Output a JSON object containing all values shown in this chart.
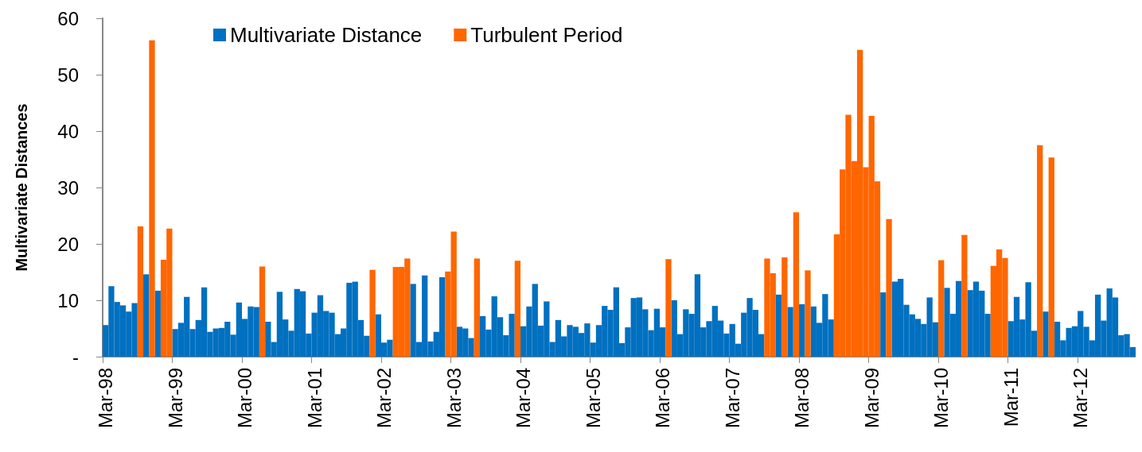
{
  "chart_data": {
    "type": "bar",
    "ylabel": "Multivariate Distances",
    "categories": [
      "Mar-98",
      null,
      null,
      null,
      null,
      null,
      null,
      null,
      null,
      null,
      null,
      null,
      "Mar-99",
      null,
      null,
      null,
      null,
      null,
      null,
      null,
      null,
      null,
      null,
      null,
      "Mar-00",
      null,
      null,
      null,
      null,
      null,
      null,
      null,
      null,
      null,
      null,
      null,
      "Mar-01",
      null,
      null,
      null,
      null,
      null,
      null,
      null,
      null,
      null,
      null,
      null,
      "Mar-02",
      null,
      null,
      null,
      null,
      null,
      null,
      null,
      null,
      null,
      null,
      null,
      "Mar-03",
      null,
      null,
      null,
      null,
      null,
      null,
      null,
      null,
      null,
      null,
      null,
      "Mar-04",
      null,
      null,
      null,
      null,
      null,
      null,
      null,
      null,
      null,
      null,
      null,
      "Mar-05",
      null,
      null,
      null,
      null,
      null,
      null,
      null,
      null,
      null,
      null,
      null,
      "Mar-06",
      null,
      null,
      null,
      null,
      null,
      null,
      null,
      null,
      null,
      null,
      null,
      "Mar-07",
      null,
      null,
      null,
      null,
      null,
      null,
      null,
      null,
      null,
      null,
      null,
      "Mar-08",
      null,
      null,
      null,
      null,
      null,
      null,
      null,
      null,
      null,
      null,
      null,
      "Mar-09",
      null,
      null,
      null,
      null,
      null,
      null,
      null,
      null,
      null,
      null,
      null,
      "Mar-10",
      null,
      null,
      null,
      null,
      null,
      null,
      null,
      null,
      null,
      null,
      null,
      "Mar-11",
      null,
      null,
      null,
      null,
      null,
      null,
      null,
      null,
      null,
      null,
      null,
      "Mar-12",
      null,
      null,
      null,
      null,
      null,
      null,
      null,
      null,
      null
    ],
    "series": [
      {
        "name": "Multivariate Distance",
        "color": "#0070c0",
        "values": [
          5.6,
          12.5,
          9.7,
          9.1,
          8.0,
          9.5,
          null,
          14.6,
          null,
          11.7,
          null,
          null,
          4.9,
          6.0,
          10.6,
          4.9,
          6.5,
          12.3,
          4.4,
          5.0,
          5.1,
          6.2,
          3.9,
          9.6,
          6.7,
          8.9,
          8.8,
          null,
          6.2,
          2.6,
          11.5,
          6.6,
          4.6,
          12.0,
          11.6,
          4.1,
          7.8,
          10.9,
          8.1,
          7.8,
          4.0,
          5.0,
          13.1,
          13.3,
          6.5,
          3.7,
          null,
          7.5,
          2.5,
          3.0,
          null,
          null,
          null,
          12.9,
          2.6,
          14.4,
          2.7,
          4.4,
          14.1,
          null,
          null,
          5.3,
          5.0,
          3.3,
          null,
          7.2,
          4.8,
          10.7,
          7.0,
          3.8,
          7.6,
          null,
          5.4,
          8.9,
          12.9,
          5.5,
          9.8,
          2.6,
          6.5,
          3.6,
          5.6,
          5.3,
          4.2,
          5.9,
          2.5,
          5.6,
          9.0,
          8.3,
          12.3,
          2.4,
          5.2,
          10.4,
          10.5,
          8.4,
          4.7,
          8.5,
          5.2,
          null,
          10.0,
          4.0,
          8.4,
          7.6,
          14.6,
          5.2,
          6.3,
          9.0,
          6.4,
          4.1,
          5.8,
          2.3,
          7.8,
          10.4,
          8.3,
          4.0,
          null,
          null,
          11.0,
          null,
          8.8,
          null,
          9.3,
          null,
          8.9,
          6.0,
          11.1,
          6.6,
          null,
          null,
          null,
          null,
          null,
          null,
          null,
          null,
          11.4,
          null,
          13.3,
          13.8,
          9.2,
          7.5,
          6.7,
          5.8,
          10.5,
          6.1,
          null,
          12.2,
          7.6,
          13.4,
          null,
          11.8,
          13.3,
          11.7,
          7.6,
          null,
          null,
          null,
          6.3,
          10.6,
          6.6,
          13.2,
          4.6,
          null,
          8.0,
          null,
          6.2,
          2.9,
          5.1,
          5.4,
          8.1,
          5.3,
          2.9,
          11.0,
          6.4,
          12.1,
          10.5,
          3.8,
          4.0,
          1.7
        ]
      },
      {
        "name": "Turbulent Period",
        "color": "#ff6600",
        "values": [
          null,
          null,
          null,
          null,
          null,
          null,
          23.1,
          null,
          56.1,
          null,
          17.2,
          22.7,
          null,
          null,
          null,
          null,
          null,
          null,
          null,
          null,
          null,
          null,
          null,
          null,
          null,
          null,
          null,
          16.0,
          null,
          null,
          null,
          null,
          null,
          null,
          null,
          null,
          null,
          null,
          null,
          null,
          null,
          null,
          null,
          null,
          null,
          null,
          15.4,
          null,
          null,
          null,
          15.9,
          15.9,
          17.4,
          null,
          null,
          null,
          null,
          null,
          null,
          15.1,
          22.2,
          null,
          null,
          null,
          17.4,
          null,
          null,
          null,
          null,
          null,
          null,
          17.0,
          null,
          null,
          null,
          null,
          null,
          null,
          null,
          null,
          null,
          null,
          null,
          null,
          null,
          null,
          null,
          null,
          null,
          null,
          null,
          null,
          null,
          null,
          null,
          null,
          null,
          17.3,
          null,
          null,
          null,
          null,
          null,
          null,
          null,
          null,
          null,
          null,
          null,
          null,
          null,
          null,
          null,
          null,
          17.4,
          14.8,
          null,
          17.6,
          null,
          25.6,
          null,
          15.3,
          null,
          null,
          null,
          null,
          21.7,
          33.2,
          42.9,
          34.7,
          54.4,
          33.6,
          42.7,
          31.1,
          null,
          24.4,
          null,
          null,
          null,
          null,
          null,
          null,
          null,
          null,
          17.1,
          null,
          null,
          null,
          21.6,
          null,
          null,
          null,
          null,
          16.1,
          19.0,
          17.5,
          null,
          null,
          null,
          null,
          null,
          37.5,
          null,
          35.3,
          null,
          null,
          null,
          null,
          null,
          null,
          null,
          null,
          null,
          null,
          null,
          null,
          null,
          null
        ]
      }
    ],
    "ylim": [
      0,
      60
    ],
    "yticks": [
      {
        "value": 0,
        "label": "-"
      },
      10,
      20,
      30,
      40,
      50,
      60
    ],
    "grid": false,
    "legend": "top left"
  }
}
